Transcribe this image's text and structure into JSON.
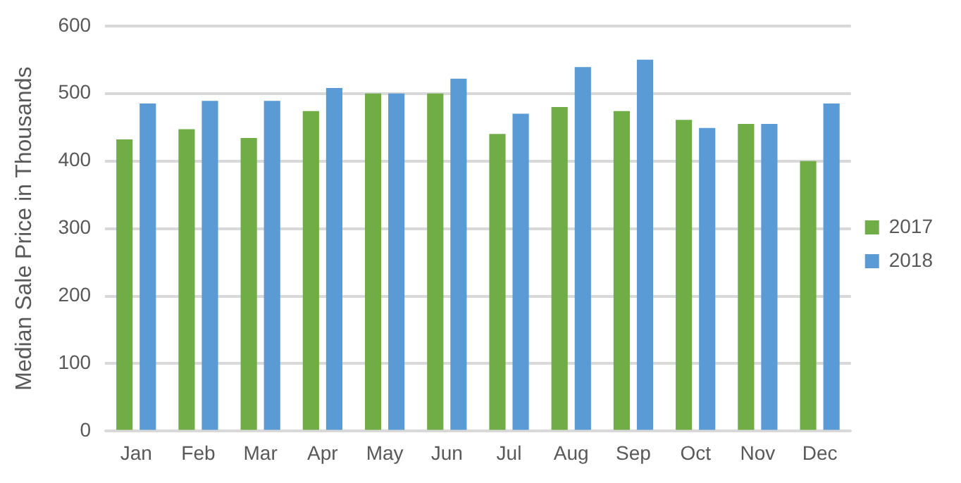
{
  "chart_data": {
    "type": "bar",
    "ylabel": "Median Sale Price in Thousands",
    "categories": [
      "Jan",
      "Feb",
      "Mar",
      "Apr",
      "May",
      "Jun",
      "Jul",
      "Aug",
      "Sep",
      "Oct",
      "Nov",
      "Dec"
    ],
    "series": [
      {
        "name": "2017",
        "color": "#70ad47",
        "values": [
          432,
          447,
          434,
          474,
          500,
          500,
          440,
          480,
          474,
          461,
          455,
          400
        ]
      },
      {
        "name": "2018",
        "color": "#5b9bd5",
        "values": [
          485,
          489,
          489,
          508,
          500,
          522,
          470,
          539,
          550,
          449,
          455,
          485
        ]
      }
    ],
    "ylim": [
      0,
      600
    ],
    "yticks": [
      0,
      100,
      200,
      300,
      400,
      500,
      600
    ],
    "grid": "y",
    "legend": "right"
  }
}
